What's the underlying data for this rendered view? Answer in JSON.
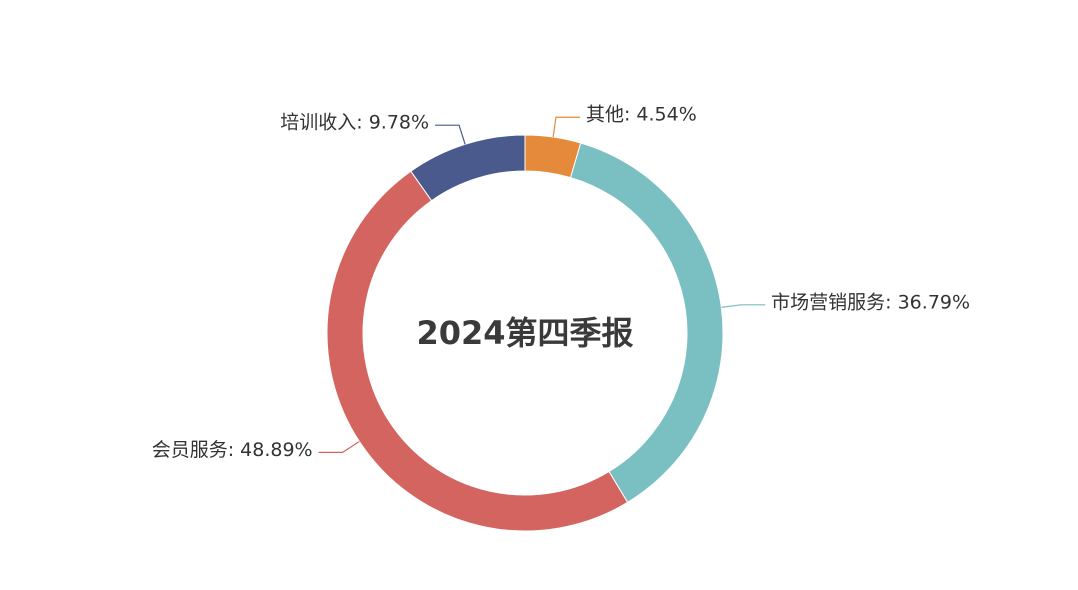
{
  "chart_data": {
    "type": "pie",
    "title": "2024第四季报",
    "slices": [
      {
        "name": "其他",
        "value": 4.54,
        "label": "其他: 4.54%",
        "color": "#e5893a"
      },
      {
        "name": "市场营销服务",
        "value": 36.79,
        "label": "市场营销服务: 36.79%",
        "color": "#7abfc1"
      },
      {
        "name": "会员服务",
        "value": 48.89,
        "label": "会员服务: 48.89%",
        "color": "#d4645f"
      },
      {
        "name": "培训收入",
        "value": 9.78,
        "label": "培训收入: 9.78%",
        "color": "#4b5a8d"
      }
    ],
    "donut": true,
    "start": "top",
    "direction": "clockwise"
  }
}
